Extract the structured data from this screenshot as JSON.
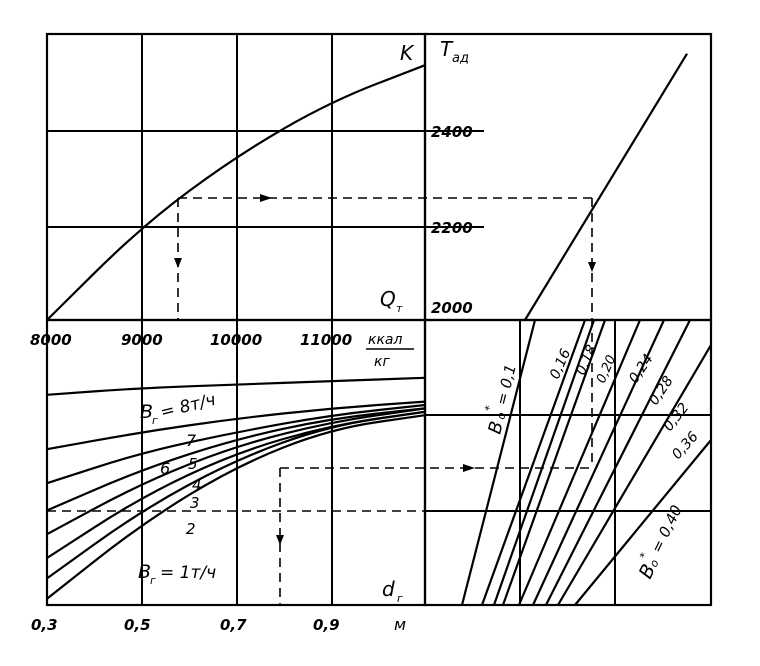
{
  "chart_data": [
    {
      "panel": "top-left",
      "type": "line",
      "xlabel": "Q",
      "xlabel_sub": "т",
      "ylabel": "K",
      "x_ticks": [
        "8000",
        "9000",
        "10000",
        "11000"
      ],
      "x_unit_num": "ккал",
      "x_unit_den": "кг",
      "xlim": [
        8000,
        12000
      ],
      "series": [
        {
          "x": [
            8000,
            9000,
            10000,
            11000,
            12000
          ],
          "y": [
            0.0,
            0.36,
            0.63,
            0.84,
            0.98
          ]
        }
      ]
    },
    {
      "panel": "top-right",
      "type": "line",
      "ylabel": "T",
      "ylabel_sub": "ад",
      "y_ticks": [
        "2000",
        "2200",
        "2400"
      ],
      "ylim": [
        2000,
        2580
      ],
      "series": [
        {
          "x": [
            0.0,
            1.0
          ],
          "y": [
            2000,
            2540
          ]
        }
      ]
    },
    {
      "panel": "bottom-left",
      "type": "line",
      "xlabel": "d",
      "xlabel_sub": "г",
      "x_unit": "м",
      "x_ticks": [
        "0,3",
        "0,5",
        "0,7",
        "0,9"
      ],
      "xlim": [
        0.3,
        1.1
      ],
      "series_labels": [
        "B",
        "г",
        "= 8т/ч",
        "7",
        "6",
        "5",
        "4",
        "3",
        "2",
        "= 1т/ч"
      ],
      "series": [
        {
          "name": "8 т/ч",
          "x": [
            0.3,
            0.5,
            0.7,
            0.9,
            1.1
          ],
          "y": [
            0.82,
            0.6,
            0.43,
            0.32,
            0.28
          ]
        },
        {
          "name": "7",
          "x": [
            0.3,
            0.5,
            0.7,
            0.9,
            1.1
          ],
          "y": [
            0.76,
            0.56,
            0.41,
            0.31,
            0.27
          ]
        },
        {
          "name": "6",
          "x": [
            0.3,
            0.5,
            0.7,
            0.9,
            1.1
          ],
          "y": [
            0.7,
            0.52,
            0.39,
            0.31,
            0.27
          ]
        },
        {
          "name": "5",
          "x": [
            0.3,
            0.5,
            0.7,
            0.9,
            1.1
          ],
          "y": [
            0.63,
            0.48,
            0.37,
            0.3,
            0.26
          ]
        },
        {
          "name": "4",
          "x": [
            0.3,
            0.5,
            0.7,
            0.9,
            1.1
          ],
          "y": [
            0.56,
            0.44,
            0.35,
            0.29,
            0.26
          ]
        },
        {
          "name": "3",
          "x": [
            0.3,
            0.5,
            0.7,
            0.9,
            1.1
          ],
          "y": [
            0.48,
            0.39,
            0.33,
            0.28,
            0.25
          ]
        },
        {
          "name": "2",
          "x": [
            0.3,
            0.5,
            0.7,
            0.9,
            1.1
          ],
          "y": [
            0.38,
            0.33,
            0.29,
            0.26,
            0.24
          ]
        },
        {
          "name": "1 т/ч",
          "x": [
            0.3,
            0.5,
            0.7,
            0.9,
            1.1
          ],
          "y": [
            0.22,
            0.2,
            0.19,
            0.18,
            0.17
          ]
        }
      ]
    },
    {
      "panel": "bottom-right",
      "type": "line",
      "series_labels": [
        "B",
        "o",
        "*",
        "= 0,1",
        "0,16",
        "0,18",
        "0,20",
        "0,24",
        "0,28",
        "0,32",
        "0,36",
        "= 0,40"
      ],
      "series": [
        {
          "name": "0,1"
        },
        {
          "name": "0,16"
        },
        {
          "name": "0,18"
        },
        {
          "name": "0,20"
        },
        {
          "name": "0,24"
        },
        {
          "name": "0,28"
        },
        {
          "name": "0,32"
        },
        {
          "name": "0,36"
        },
        {
          "name": "0,40"
        }
      ]
    }
  ]
}
